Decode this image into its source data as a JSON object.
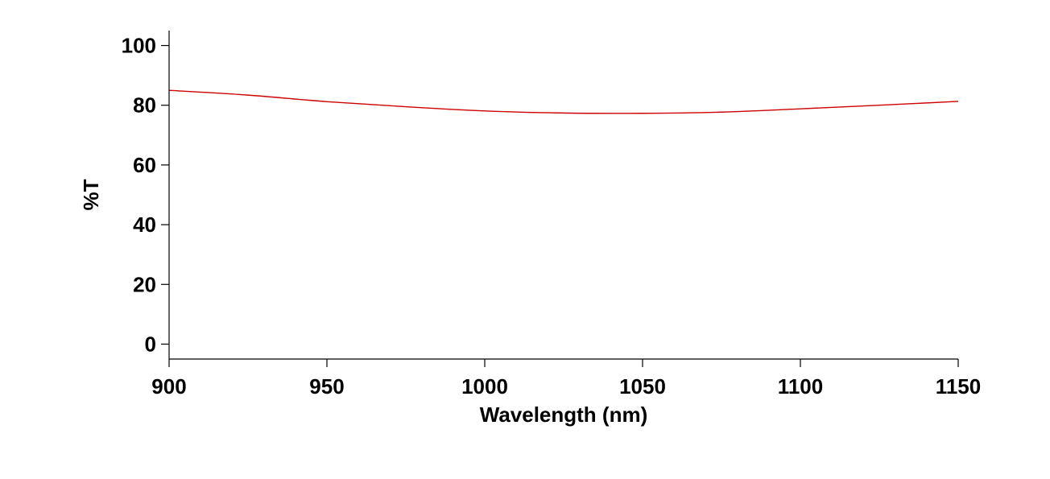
{
  "chart_data": {
    "type": "line",
    "title": "",
    "xlabel": "Wavelength (nm)",
    "ylabel": "%T",
    "xlim": [
      900,
      1150
    ],
    "ylim": [
      -5,
      105
    ],
    "xticks": [
      900,
      950,
      1000,
      1050,
      1100,
      1150
    ],
    "yticks": [
      0,
      20,
      40,
      60,
      80,
      100
    ],
    "grid": false,
    "legend": "none",
    "series": [
      {
        "color": "#cc0000",
        "x": [
          900,
          925,
          950,
          975,
          1000,
          1025,
          1050,
          1075,
          1100,
          1125,
          1150
        ],
        "y": [
          85.0,
          83.4,
          81.2,
          79.5,
          78.1,
          77.4,
          77.3,
          77.7,
          78.8,
          80.0,
          81.3
        ]
      }
    ]
  }
}
